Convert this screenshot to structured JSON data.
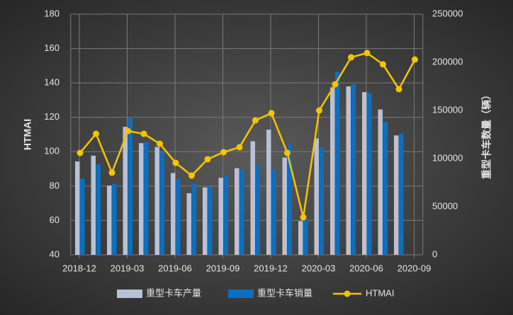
{
  "chart_data": {
    "type": "bar-line",
    "categories": [
      "2018-12",
      null,
      null,
      "2019-03",
      null,
      null,
      "2019-06",
      null,
      null,
      "2019-09",
      null,
      null,
      "2019-12",
      null,
      null,
      "2020-03",
      null,
      null,
      "2020-06",
      null,
      null,
      "2020-09"
    ],
    "series": [
      {
        "name": "重型卡车产量",
        "type": "bar",
        "axis": "y2",
        "color": "#b8c1d6",
        "values": [
          97000,
          103000,
          72000,
          133000,
          116000,
          112000,
          85000,
          64000,
          70000,
          80000,
          90000,
          118000,
          130000,
          101000,
          35000,
          121000,
          174000,
          175000,
          169000,
          151000,
          124000,
          null
        ]
      },
      {
        "name": "重型卡车销量",
        "type": "bar",
        "axis": "y2",
        "color": "#0a6fc2",
        "values": [
          79000,
          94000,
          74000,
          142000,
          117000,
          107000,
          79000,
          74000,
          71000,
          82000,
          89000,
          93000,
          89000,
          115000,
          37000,
          112000,
          190000,
          177000,
          168000,
          138000,
          126000,
          null
        ]
      },
      {
        "name": "HTMAI",
        "type": "line",
        "color": "#f5c400",
        "values": [
          99.3,
          110.4,
          87.8,
          112,
          110.4,
          104.6,
          93.5,
          86.1,
          95.6,
          99.7,
          102.6,
          118.2,
          122.4,
          99.3,
          61.8,
          124,
          139.2,
          154.9,
          157.4,
          150.8,
          136.4,
          153.6
        ]
      }
    ],
    "ylabel": "HTMAI",
    "y2label": "重型卡车数量（辆）",
    "ylim": [
      40,
      180
    ],
    "yticks": [
      40,
      60,
      80,
      100,
      120,
      140,
      160,
      180
    ],
    "y2lim": [
      0,
      250000
    ],
    "y2ticks": [
      0,
      50000,
      100000,
      150000,
      200000,
      250000
    ],
    "grid": true,
    "legend": "bottom"
  }
}
